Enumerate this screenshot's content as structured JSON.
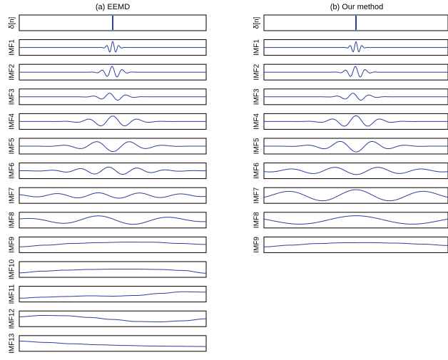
{
  "colors": {
    "signal": "#2a3f9d",
    "frame": "#000000"
  },
  "chart_data": [
    {
      "type": "line",
      "title": "(a) EEMD",
      "x_range": [
        0,
        1
      ],
      "y_range_each_panel": [
        -1,
        1
      ],
      "grid": false,
      "panels": [
        {
          "label": "δ[n]",
          "kind": "impulse"
        },
        {
          "label": "IMF1",
          "kind": "wavelet",
          "amp": 0.88,
          "freq": 30,
          "width": 0.022,
          "phase": 0
        },
        {
          "label": "IMF2",
          "kind": "wavelet",
          "amp": 0.85,
          "freq": 18,
          "width": 0.04,
          "phase": 0.4
        },
        {
          "label": "IMF3",
          "kind": "wavelet",
          "amp": 0.55,
          "freq": 11,
          "width": 0.06,
          "phase": 1.2
        },
        {
          "label": "IMF4",
          "kind": "wavelet",
          "amp": 0.8,
          "freq": 7.5,
          "width": 0.1,
          "phase": 0
        },
        {
          "label": "IMF5",
          "kind": "wavelet",
          "amp": 0.8,
          "freq": 5.5,
          "width": 0.14,
          "phase": 3.1
        },
        {
          "label": "IMF6",
          "kind": "wavelet",
          "amp": 0.55,
          "freq": 6.5,
          "width": 0.17,
          "phase": 0.9
        },
        {
          "label": "IMF7",
          "kind": "wavelet",
          "amp": 0.4,
          "freq": 4.5,
          "width": 0.35,
          "phase": 2.2
        },
        {
          "label": "IMF8",
          "kind": "wavelet",
          "amp": 0.65,
          "freq": 2.6,
          "width": 0.33,
          "phase": 1.3
        },
        {
          "label": "IMF9",
          "kind": "curve",
          "y": [
            -0.3,
            -0.05,
            0.2,
            0.32,
            0.4,
            0.38,
            0.2,
            0.05
          ]
        },
        {
          "label": "IMF10",
          "kind": "curve",
          "y": [
            -0.5,
            -0.25,
            -0.1,
            0.0,
            0.05,
            0.05,
            0.0,
            -0.15,
            -0.55
          ]
        },
        {
          "label": "IMF11",
          "kind": "curve",
          "y": [
            -0.6,
            -0.45,
            -0.35,
            -0.25,
            -0.3,
            -0.2,
            0.1,
            0.35,
            0.3
          ]
        },
        {
          "label": "IMF12",
          "kind": "curve",
          "y": [
            0.3,
            0.5,
            0.45,
            0.2,
            -0.1,
            -0.4,
            -0.45,
            -0.3,
            0.0
          ]
        },
        {
          "label": "IMF13",
          "kind": "curve",
          "y": [
            0.35,
            0.15,
            -0.05,
            -0.2,
            -0.3,
            -0.38,
            -0.42,
            -0.45
          ]
        }
      ]
    },
    {
      "type": "line",
      "title": "(b) Our method",
      "x_range": [
        0,
        1
      ],
      "y_range_each_panel": [
        -1,
        1
      ],
      "grid": false,
      "panels": [
        {
          "label": "δ[n]",
          "kind": "impulse"
        },
        {
          "label": "IMF1",
          "kind": "wavelet",
          "amp": 0.85,
          "freq": 30,
          "width": 0.022,
          "phase": 0
        },
        {
          "label": "IMF2",
          "kind": "wavelet",
          "amp": 0.85,
          "freq": 18,
          "width": 0.04,
          "phase": 0.4
        },
        {
          "label": "IMF3",
          "kind": "wavelet",
          "amp": 0.55,
          "freq": 11,
          "width": 0.06,
          "phase": 1.2
        },
        {
          "label": "IMF4",
          "kind": "wavelet",
          "amp": 0.85,
          "freq": 7.5,
          "width": 0.1,
          "phase": 0
        },
        {
          "label": "IMF5",
          "kind": "wavelet",
          "amp": 0.85,
          "freq": 5.5,
          "width": 0.14,
          "phase": 3.1
        },
        {
          "label": "IMF6",
          "kind": "wavelet",
          "amp": 0.55,
          "freq": 4.2,
          "width": 0.3,
          "phase": 3.1
        },
        {
          "label": "IMF7",
          "kind": "wavelet",
          "amp": 0.85,
          "freq": 2.7,
          "width": 0.45,
          "phase": 0
        },
        {
          "label": "IMF8",
          "kind": "wavelet",
          "amp": 0.65,
          "freq": 1.6,
          "width": 0.7,
          "phase": 0
        },
        {
          "label": "IMF9",
          "kind": "curve",
          "y": [
            -0.3,
            -0.05,
            0.18,
            0.3,
            0.32,
            0.25,
            0.1,
            -0.1
          ]
        }
      ]
    }
  ]
}
